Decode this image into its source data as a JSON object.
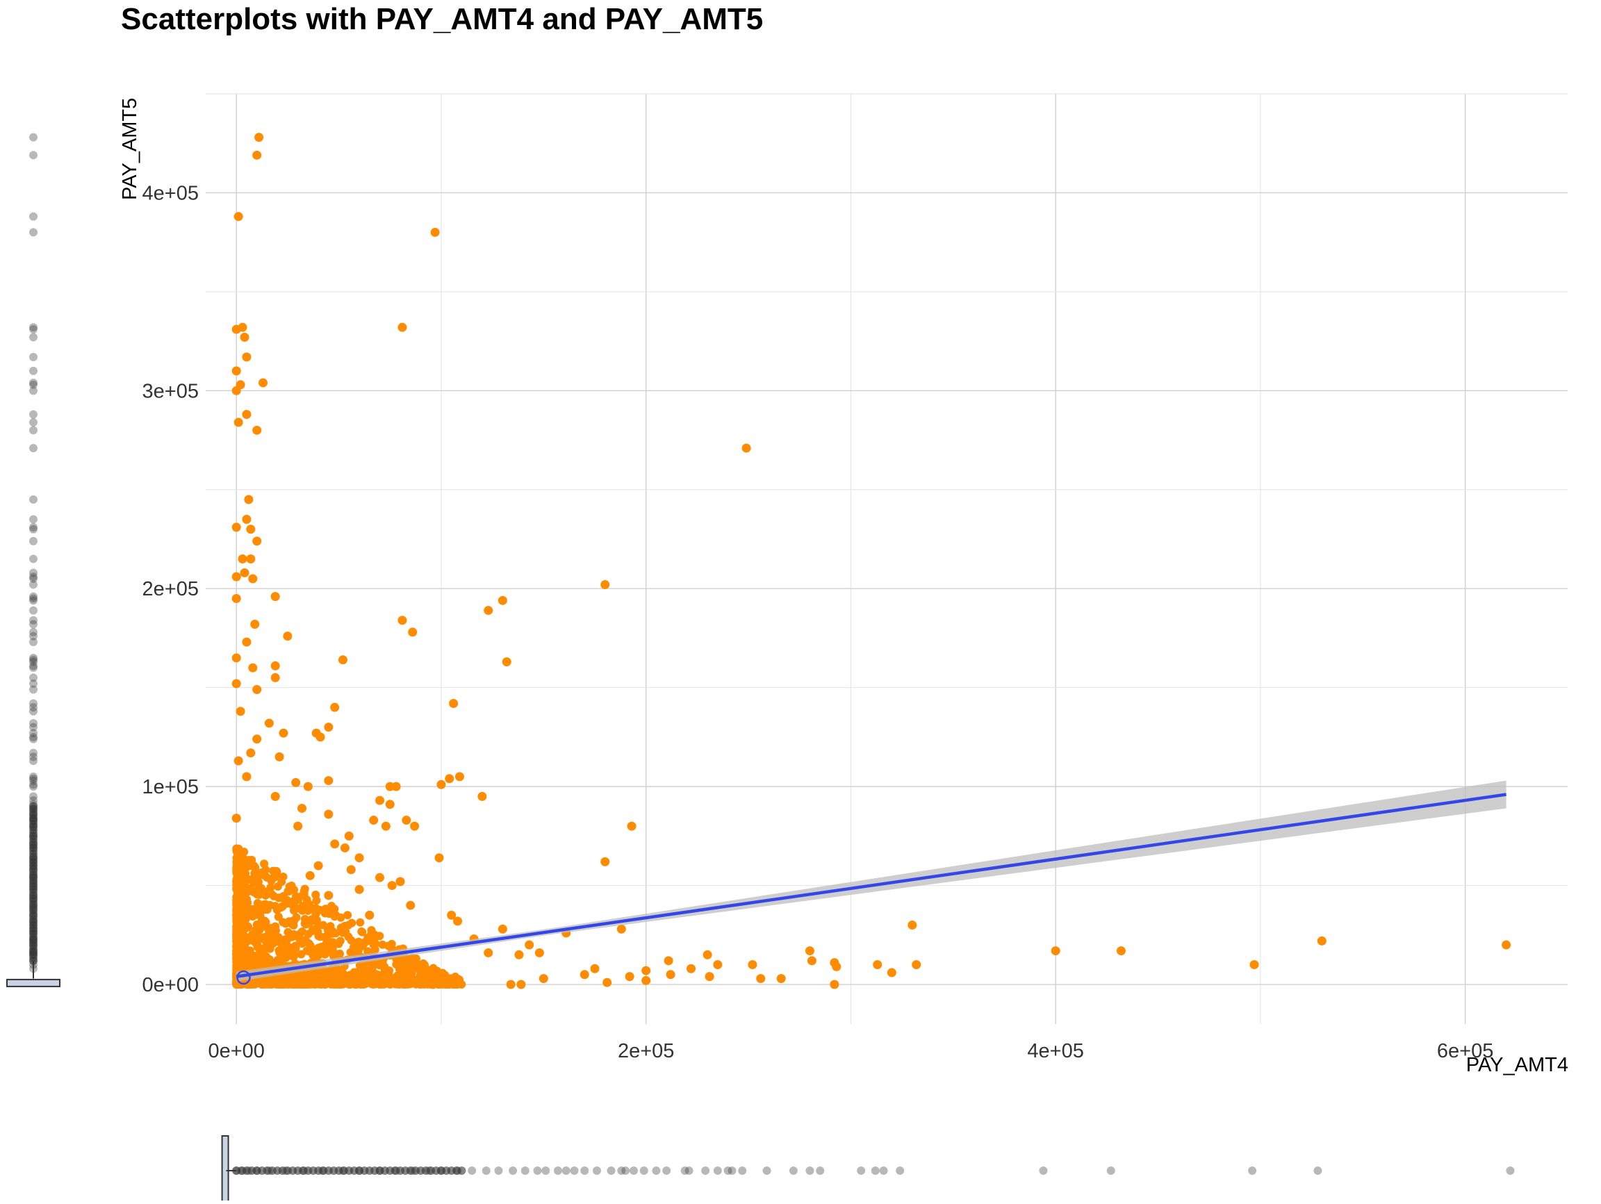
{
  "chart_data": {
    "type": "scatter",
    "title": "Scatterplots with PAY_AMT4 and PAY_AMT5",
    "xlabel": "PAY_AMT4",
    "ylabel": "PAY_AMT5",
    "xlim": [
      -15000,
      650000
    ],
    "ylim": [
      -20000,
      450000
    ],
    "x_ticks": [
      0,
      200000,
      400000,
      600000
    ],
    "x_tick_labels": [
      "0e+00",
      "2e+05",
      "4e+05",
      "6e+05"
    ],
    "y_ticks": [
      0,
      100000,
      200000,
      300000,
      400000
    ],
    "y_tick_labels": [
      "0e+00",
      "1e+05",
      "2e+05",
      "3e+05",
      "4e+05"
    ],
    "grid": true,
    "point_color": "#ff8c00",
    "fit_line_color": "#3346e8",
    "fit_band_color": "#bdbdbd",
    "marginal_color": "#333333",
    "fit_line": {
      "method": "linear",
      "x": [
        0,
        620000
      ],
      "y": [
        4000,
        96000
      ],
      "ci_halfwidth_at_x": [
        [
          0,
          2500
        ],
        [
          150000,
          1500
        ],
        [
          620000,
          7000
        ]
      ]
    },
    "points": [
      [
        11000,
        428000
      ],
      [
        10000,
        419000
      ],
      [
        1000,
        388000
      ],
      [
        97000,
        380000
      ],
      [
        81000,
        332000
      ],
      [
        3000,
        332000
      ],
      [
        0,
        331000
      ],
      [
        4000,
        327000
      ],
      [
        5000,
        317000
      ],
      [
        0,
        310000
      ],
      [
        13000,
        304000
      ],
      [
        2000,
        303000
      ],
      [
        0,
        300000
      ],
      [
        5000,
        288000
      ],
      [
        1000,
        284000
      ],
      [
        10000,
        280000
      ],
      [
        249000,
        271000
      ],
      [
        6000,
        245000
      ],
      [
        5000,
        235000
      ],
      [
        0,
        231000
      ],
      [
        7000,
        230000
      ],
      [
        10000,
        224000
      ],
      [
        3000,
        215000
      ],
      [
        7000,
        215000
      ],
      [
        4000,
        208000
      ],
      [
        0,
        206000
      ],
      [
        8000,
        205000
      ],
      [
        180000,
        202000
      ],
      [
        19000,
        196000
      ],
      [
        0,
        195000
      ],
      [
        130000,
        194000
      ],
      [
        123000,
        189000
      ],
      [
        81000,
        184000
      ],
      [
        9000,
        182000
      ],
      [
        86000,
        178000
      ],
      [
        25000,
        176000
      ],
      [
        5000,
        173000
      ],
      [
        0,
        165000
      ],
      [
        52000,
        164000
      ],
      [
        132000,
        163000
      ],
      [
        19000,
        161000
      ],
      [
        8000,
        160000
      ],
      [
        19000,
        155000
      ],
      [
        0,
        152000
      ],
      [
        10000,
        149000
      ],
      [
        106000,
        142000
      ],
      [
        48000,
        140000
      ],
      [
        2000,
        138000
      ],
      [
        16000,
        132000
      ],
      [
        45000,
        130000
      ],
      [
        23000,
        127000
      ],
      [
        39000,
        127000
      ],
      [
        41000,
        125000
      ],
      [
        10000,
        124000
      ],
      [
        7000,
        117000
      ],
      [
        21000,
        115000
      ],
      [
        1000,
        113000
      ],
      [
        5000,
        105000
      ],
      [
        109000,
        105000
      ],
      [
        104000,
        104000
      ],
      [
        100000,
        101000
      ],
      [
        45000,
        103000
      ],
      [
        29000,
        102000
      ],
      [
        35000,
        100000
      ],
      [
        75000,
        100000
      ],
      [
        78000,
        100000
      ],
      [
        120000,
        95000
      ],
      [
        19000,
        95000
      ],
      [
        70000,
        93000
      ],
      [
        75000,
        91000
      ],
      [
        32000,
        89000
      ],
      [
        45000,
        86000
      ],
      [
        83000,
        83000
      ],
      [
        67000,
        83000
      ],
      [
        87000,
        80000
      ],
      [
        193000,
        80000
      ],
      [
        30000,
        80000
      ],
      [
        73000,
        80000
      ],
      [
        0,
        84000
      ],
      [
        55000,
        75000
      ],
      [
        48000,
        71000
      ],
      [
        53000,
        69000
      ],
      [
        60000,
        64000
      ],
      [
        99000,
        64000
      ],
      [
        180000,
        62000
      ],
      [
        40000,
        60000
      ],
      [
        56000,
        58000
      ],
      [
        36000,
        55000
      ],
      [
        70000,
        54000
      ],
      [
        80000,
        52000
      ],
      [
        76000,
        50000
      ],
      [
        60000,
        48000
      ],
      [
        45000,
        45000
      ],
      [
        30000,
        43000
      ],
      [
        85000,
        40000
      ],
      [
        105000,
        35000
      ],
      [
        108000,
        32000
      ],
      [
        15000,
        38000
      ],
      [
        65000,
        35000
      ],
      [
        130000,
        28000
      ],
      [
        188000,
        28000
      ],
      [
        330000,
        30000
      ],
      [
        116000,
        23000
      ],
      [
        161000,
        26000
      ],
      [
        143000,
        20000
      ],
      [
        400000,
        17000
      ],
      [
        432000,
        17000
      ],
      [
        280000,
        17000
      ],
      [
        530000,
        22000
      ],
      [
        620000,
        20000
      ],
      [
        230000,
        15000
      ],
      [
        281000,
        12000
      ],
      [
        211000,
        12000
      ],
      [
        138000,
        15000
      ],
      [
        123000,
        16000
      ],
      [
        148000,
        16000
      ],
      [
        175000,
        8000
      ],
      [
        200000,
        7000
      ],
      [
        222000,
        8000
      ],
      [
        235000,
        10000
      ],
      [
        252000,
        10000
      ],
      [
        293000,
        9000
      ],
      [
        292000,
        11000
      ],
      [
        313000,
        10000
      ],
      [
        332000,
        10000
      ],
      [
        497000,
        10000
      ],
      [
        320000,
        6000
      ],
      [
        256000,
        3000
      ],
      [
        266000,
        3000
      ],
      [
        231000,
        4000
      ],
      [
        212000,
        5000
      ],
      [
        192000,
        4000
      ],
      [
        170000,
        5000
      ],
      [
        150000,
        3000
      ],
      [
        139000,
        0
      ],
      [
        134000,
        0
      ],
      [
        181000,
        1000
      ],
      [
        292000,
        0
      ],
      [
        200000,
        2000
      ],
      [
        96000,
        0
      ]
    ],
    "dense_cluster": {
      "x_max": 110000,
      "y_max": 70000,
      "description_count": 1400
    },
    "marginal_x_outliers": [
      0,
      3000,
      6000,
      10000,
      16000,
      24000,
      33000,
      42000,
      52000,
      60000,
      70000,
      78000,
      86000,
      94000,
      100000,
      108000,
      115000,
      122000,
      128000,
      135000,
      141000,
      147000,
      151000,
      157000,
      161000,
      165000,
      170000,
      176000,
      183000,
      188000,
      190000,
      194000,
      199000,
      205000,
      210000,
      219000,
      221000,
      229000,
      235000,
      240000,
      242000,
      247000,
      259000,
      272000,
      280000,
      285000,
      305000,
      312000,
      316000,
      324000,
      394000,
      427000,
      496000,
      528000,
      622000
    ],
    "marginal_y_outliers": [
      428000,
      419000,
      388000,
      380000,
      332000,
      331000,
      327000,
      317000,
      310000,
      304000,
      303000,
      300000,
      288000,
      284000,
      280000,
      271000,
      245000,
      235000,
      231000,
      230000,
      224000,
      215000,
      208000,
      206000,
      205000,
      202000,
      196000,
      195000,
      194000,
      189000,
      184000,
      182000,
      178000,
      176000,
      173000,
      165000,
      164000,
      163000,
      161000,
      160000,
      155000,
      152000,
      149000,
      142000,
      140000,
      138000,
      132000,
      130000,
      127000,
      125000,
      124000,
      117000,
      115000,
      113000,
      105000,
      104000,
      103000,
      101000,
      100000,
      95000,
      93000,
      91000,
      89000,
      86000,
      84000,
      83000,
      80000,
      75000,
      71000,
      69000,
      64000,
      62000,
      60000,
      58000,
      55000,
      54000,
      52000,
      50000,
      48000,
      45000,
      43000,
      40000,
      38000,
      35000,
      32000,
      30000,
      28000,
      26000,
      23000,
      22000,
      20000,
      17000,
      16000,
      15000,
      12000,
      10000,
      8000
    ]
  }
}
